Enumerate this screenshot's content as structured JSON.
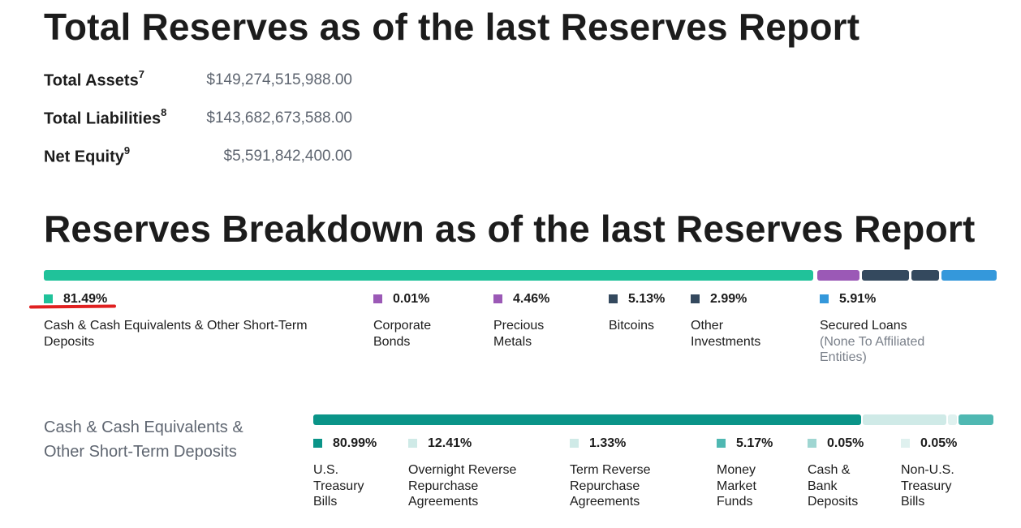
{
  "totals": {
    "title": "Total Reserves as of the last Reserves Report",
    "rows": [
      {
        "label": "Total Assets",
        "sup": "7",
        "value": "$149,274,515,988.00"
      },
      {
        "label": "Total Liabilities",
        "sup": "8",
        "value": "$143,682,673,588.00"
      },
      {
        "label": "Net Equity",
        "sup": "9",
        "value": "$5,591,842,400.00"
      }
    ]
  },
  "breakdown": {
    "title": "Reserves Breakdown as of the last Reserves Report",
    "items": [
      {
        "pct": "81.49%",
        "label": "Cash & Cash Equivalents & Other Short-Term Deposits",
        "sub": "",
        "color": "#20c29a"
      },
      {
        "pct": "0.01%",
        "label": "Corporate Bonds",
        "sub": "",
        "color": "#9b59b6"
      },
      {
        "pct": "4.46%",
        "label": "Precious Metals",
        "sub": "",
        "color": "#9b59b6"
      },
      {
        "pct": "5.13%",
        "label": "Bitcoins",
        "sub": "",
        "color": "#34495e"
      },
      {
        "pct": "2.99%",
        "label": "Other Investments",
        "sub": "",
        "color": "#34495e"
      },
      {
        "pct": "5.91%",
        "label": "Secured Loans",
        "sub": "(None To Affiliated Entities)",
        "color": "#3498db"
      }
    ]
  },
  "cash": {
    "title": "Cash & Cash Equivalents & Other Short-Term Deposits",
    "items": [
      {
        "pct": "80.99%",
        "label": "U.S. Treasury Bills",
        "color": "#0a9488"
      },
      {
        "pct": "12.41%",
        "label": "Overnight Reverse Repurchase Agreements",
        "color": "#cfeae7"
      },
      {
        "pct": "1.33%",
        "label": "Term Reverse Repurchase Agreements",
        "color": "#cfeae7"
      },
      {
        "pct": "5.17%",
        "label": "Money Market Funds",
        "color": "#4fb8b2"
      },
      {
        "pct": "0.05%",
        "label": "Cash & Bank Deposits",
        "color": "#9fd6d2"
      },
      {
        "pct": "0.05%",
        "label": "Non-U.S. Treasury Bills",
        "color": "#dff1ef"
      }
    ]
  }
}
